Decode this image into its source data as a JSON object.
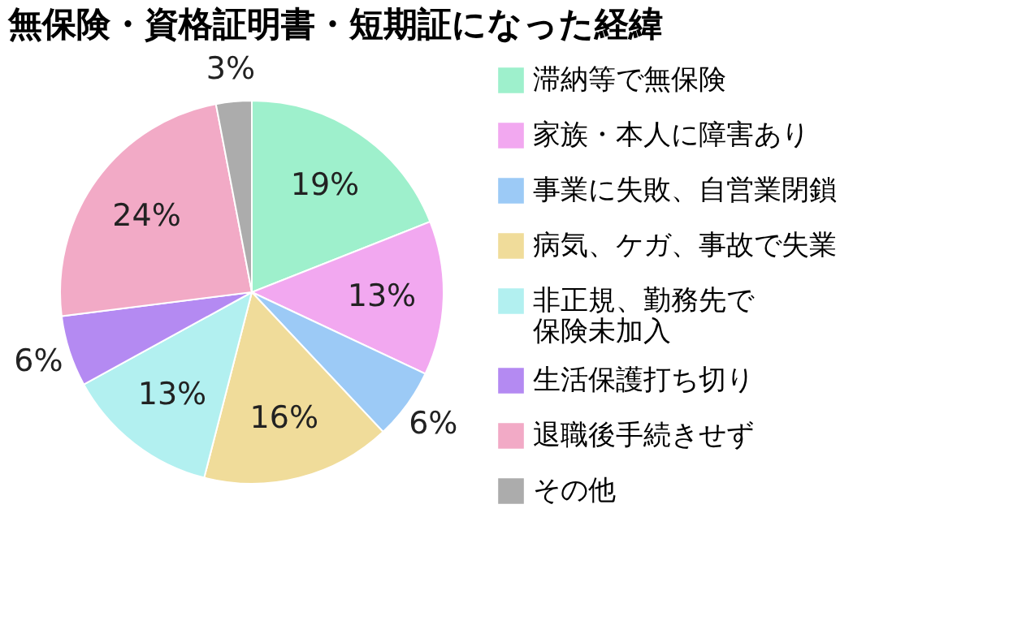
{
  "chart_data": {
    "type": "pie",
    "title": "無保険・資格証明書・短期証になった経緯",
    "categories": [
      "滞納等で無保険",
      "家族・本人に障害あり",
      "事業に失敗、自営業閉鎖",
      "病気、ケガ、事故で失業",
      "非正規、勤務先で保険未加入",
      "生活保護打ち切り",
      "退職後手続きせず",
      "その他"
    ],
    "values": [
      19,
      13,
      6,
      16,
      13,
      6,
      24,
      3
    ],
    "value_labels": [
      "19%",
      "13%",
      "6%",
      "16%",
      "13%",
      "6%",
      "24%",
      "3%"
    ],
    "colors": [
      "#9ef0cc",
      "#f2a8f0",
      "#9ccaf6",
      "#f0dc9a",
      "#b2f0f0",
      "#b48af2",
      "#f2aac6",
      "#acacac"
    ],
    "legend": "right"
  }
}
